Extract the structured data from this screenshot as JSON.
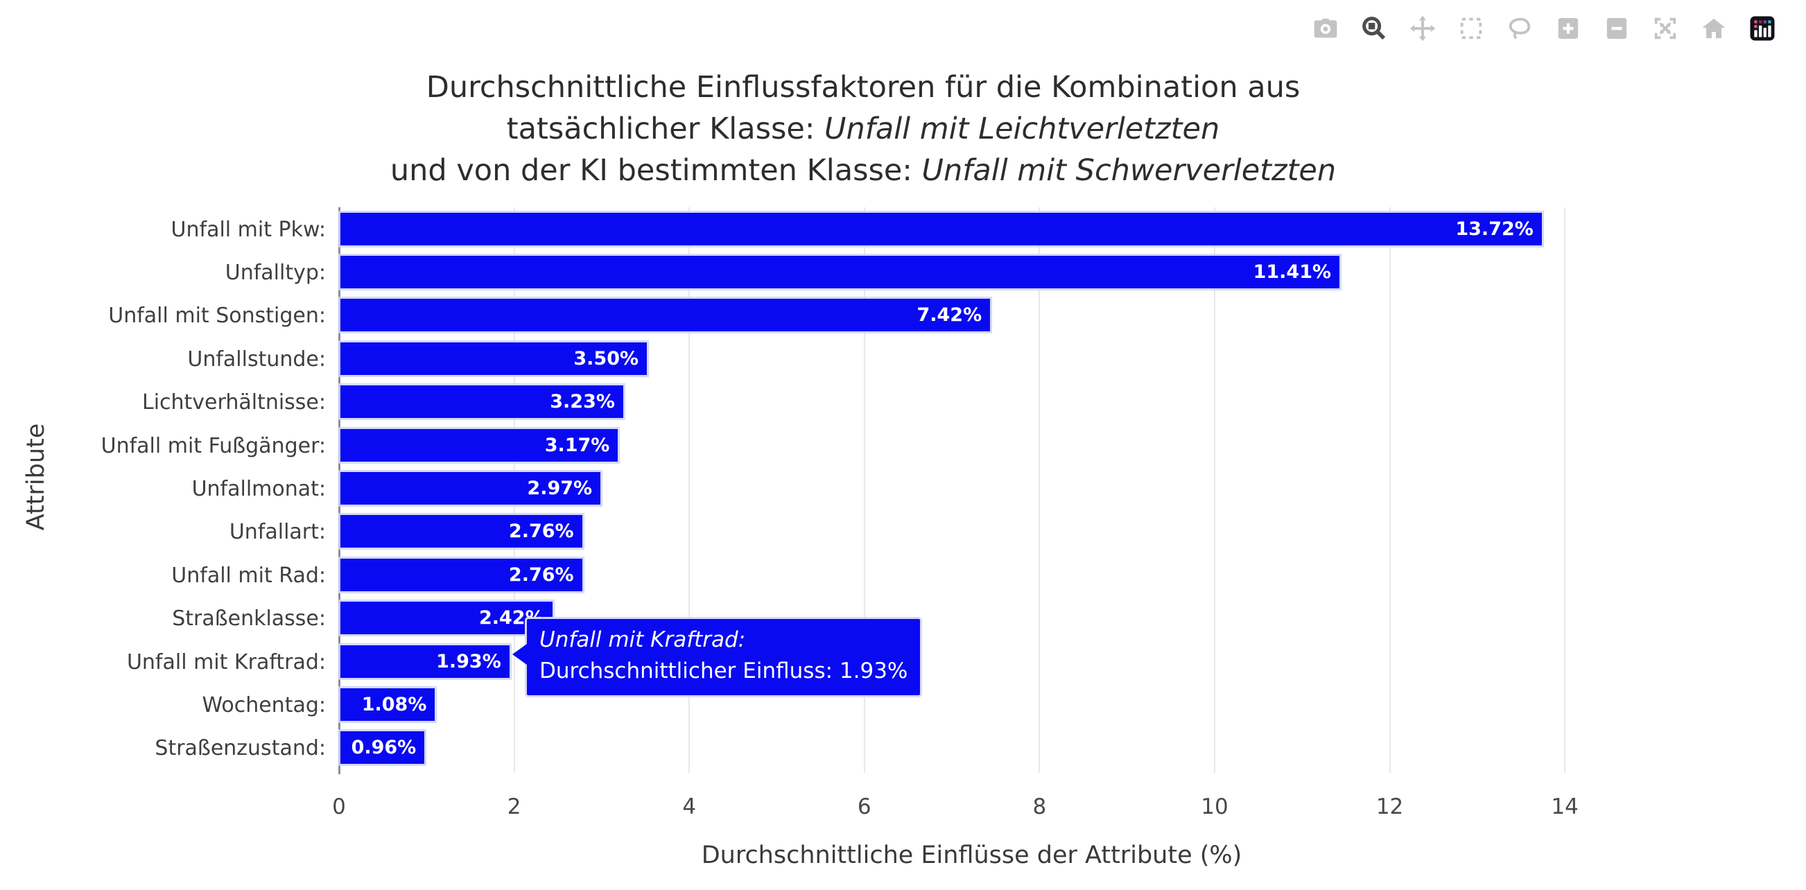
{
  "colors": {
    "bar": "#0a0af2",
    "bar_edge": "#cdd2fb",
    "grid": "#e8e8e8",
    "zeroline": "#8f8f8f",
    "tooltip_bg": "#0a0af2",
    "tooltip_border": "#d6d9fc",
    "title_text": "#2d2d2d",
    "axis_text": "#3f3f3f"
  },
  "modebar": {
    "buttons": [
      {
        "name": "download-png-button",
        "icon": "camera-icon"
      },
      {
        "name": "zoom-button",
        "icon": "magnifier-icon",
        "active": true
      },
      {
        "name": "pan-button",
        "icon": "pan-arrows-icon"
      },
      {
        "name": "box-select-button",
        "icon": "dashed-box-icon"
      },
      {
        "name": "lasso-select-button",
        "icon": "lasso-icon"
      },
      {
        "name": "zoom-in-button",
        "icon": "plus-icon"
      },
      {
        "name": "zoom-out-button",
        "icon": "minus-icon"
      },
      {
        "name": "autoscale-button",
        "icon": "autoscale-icon"
      },
      {
        "name": "reset-axes-button",
        "icon": "home-icon"
      },
      {
        "name": "plotly-logo-button",
        "icon": "plotly-logo-icon"
      }
    ]
  },
  "title": {
    "line1": "Durchschnittliche Einflussfaktoren für die Kombination aus",
    "line2_prefix": "tatsächlicher Klasse: ",
    "line2_italic": "Unfall mit Leichtverletzten",
    "line3_prefix": "und von der KI bestimmten Klasse: ",
    "line3_italic": "Unfall mit Schwerverletzten"
  },
  "chart_data": {
    "type": "bar",
    "orientation": "horizontal",
    "categories": [
      "Unfall mit Pkw:",
      "Unfalltyp:",
      "Unfall mit Sonstigen:",
      "Unfallstunde:",
      "Lichtverhältnisse:",
      "Unfall mit Fußgänger:",
      "Unfallmonat:",
      "Unfallart:",
      "Unfall mit Rad:",
      "Straßenklasse:",
      "Unfall mit Kraftrad:",
      "Wochentag:",
      "Straßenzustand:"
    ],
    "values": [
      13.72,
      11.41,
      7.42,
      3.5,
      3.23,
      3.17,
      2.97,
      2.76,
      2.76,
      2.42,
      1.93,
      1.08,
      0.96
    ],
    "bar_labels": [
      "13.72%",
      "11.41%",
      "7.42%",
      "3.50%",
      "3.23%",
      "3.17%",
      "2.97%",
      "2.76%",
      "2.76%",
      "2.42%",
      "1.93%",
      "1.08%",
      "0.96%"
    ],
    "xlabel": "Durchschnittliche Einflüsse der Attribute (%)",
    "ylabel": "Attribute",
    "xticks": [
      0,
      2,
      4,
      6,
      8,
      10,
      12,
      14
    ],
    "xlim": [
      0,
      14.45
    ],
    "grid": true,
    "legend": false
  },
  "tooltip": {
    "title_italic": "Unfall mit Kraftrad:",
    "body": "Durchschnittlicher Einfluss: 1.93%"
  }
}
